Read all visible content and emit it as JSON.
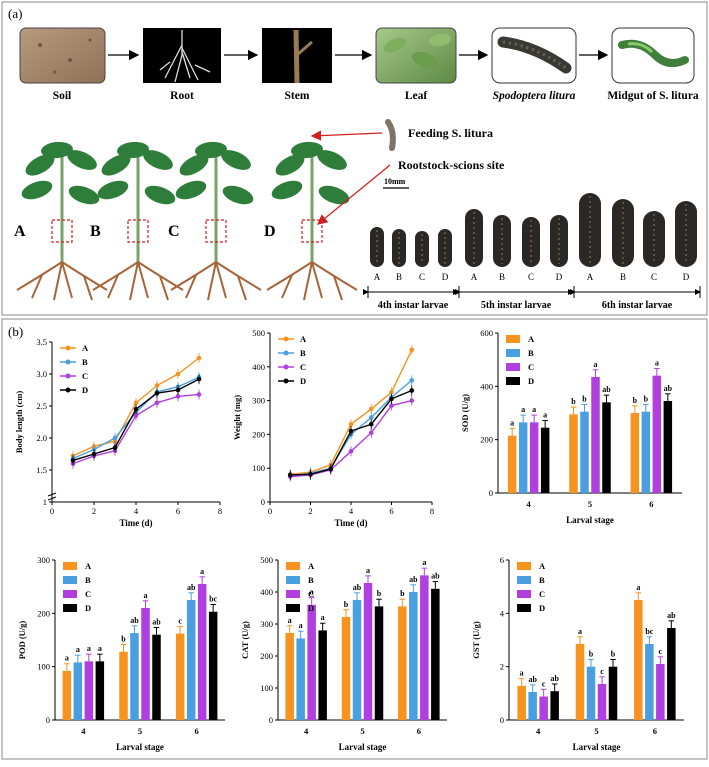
{
  "panel_a": {
    "label": "(a)",
    "flow": [
      "Soil",
      "Root",
      "Stem",
      "Leaf",
      "Spodoptera litura",
      "Midgut of S. litura"
    ],
    "feeding_label": "Feeding S. litura",
    "rootstock_label": "Rootstock-scions site",
    "plant_labels": [
      "A",
      "B",
      "C",
      "D"
    ],
    "scale_bar": "10mm",
    "larva_letters": [
      "A",
      "B",
      "C",
      "D"
    ],
    "instars": [
      "4th instar larvae",
      "5th instar larvae",
      "6th instar larvae"
    ]
  },
  "panel_b": {
    "label": "(b)"
  },
  "colors": {
    "A": "#f7931e",
    "B": "#4a9fe0",
    "C": "#b13fe0",
    "D": "#000000"
  },
  "chart_data": [
    {
      "type": "line",
      "xlabel": "Time (d)",
      "ylabel": "Body length (cm)",
      "xlim": [
        0,
        8
      ],
      "ylim": [
        1.0,
        3.5
      ],
      "xticks": [
        0,
        2,
        4,
        6,
        8
      ],
      "yticks": [
        "1",
        "1.5",
        "2.0",
        "2.5",
        "3.0",
        "3.5"
      ],
      "x": [
        1,
        2,
        3,
        4,
        5,
        6,
        7
      ],
      "series": [
        {
          "name": "A",
          "values": [
            1.72,
            1.87,
            1.95,
            2.55,
            2.82,
            3.0,
            3.25
          ]
        },
        {
          "name": "B",
          "values": [
            1.68,
            1.82,
            2.0,
            2.4,
            2.72,
            2.8,
            2.95
          ]
        },
        {
          "name": "C",
          "values": [
            1.6,
            1.72,
            1.8,
            2.35,
            2.55,
            2.65,
            2.68
          ]
        },
        {
          "name": "D",
          "values": [
            1.65,
            1.75,
            1.85,
            2.45,
            2.7,
            2.75,
            2.92
          ]
        }
      ],
      "legend": "top-left"
    },
    {
      "type": "line",
      "xlabel": "Time (d)",
      "ylabel": "Weight (mg)",
      "xlim": [
        0,
        8
      ],
      "ylim": [
        0,
        500
      ],
      "xticks": [
        0,
        2,
        4,
        6,
        8
      ],
      "yticks": [
        "0",
        "100",
        "200",
        "300",
        "400",
        "500"
      ],
      "x": [
        1,
        2,
        3,
        4,
        5,
        6,
        7
      ],
      "series": [
        {
          "name": "A",
          "values": [
            82,
            88,
            110,
            230,
            275,
            325,
            450
          ]
        },
        {
          "name": "B",
          "values": [
            78,
            85,
            100,
            200,
            250,
            310,
            360
          ]
        },
        {
          "name": "C",
          "values": [
            75,
            80,
            95,
            150,
            205,
            285,
            300
          ]
        },
        {
          "name": "D",
          "values": [
            80,
            82,
            98,
            210,
            230,
            305,
            330
          ]
        }
      ],
      "legend": "top-left"
    },
    {
      "type": "bar",
      "xlabel": "Larval stage",
      "ylabel": "SOD (U/g)",
      "ylim": [
        0,
        600
      ],
      "yticks": [
        "0",
        "200",
        "400",
        "600"
      ],
      "categories": [
        "4",
        "5",
        "6"
      ],
      "series": [
        {
          "name": "A",
          "values": [
            215,
            295,
            300
          ],
          "letters": [
            "a",
            "b",
            "b"
          ]
        },
        {
          "name": "B",
          "values": [
            265,
            305,
            305
          ],
          "letters": [
            "a",
            "b",
            "b"
          ]
        },
        {
          "name": "C",
          "values": [
            265,
            435,
            440
          ],
          "letters": [
            "a",
            "a",
            "a"
          ]
        },
        {
          "name": "D",
          "values": [
            245,
            340,
            345
          ],
          "letters": [
            "a",
            "ab",
            "ab"
          ]
        }
      ],
      "legend": "top-left"
    },
    {
      "type": "bar",
      "xlabel": "Larval stage",
      "ylabel": "POD (U/g)",
      "ylim": [
        0,
        300
      ],
      "yticks": [
        "0",
        "100",
        "200",
        "300"
      ],
      "categories": [
        "4",
        "5",
        "6"
      ],
      "series": [
        {
          "name": "A",
          "values": [
            92,
            128,
            162
          ],
          "letters": [
            "a",
            "b",
            "c"
          ]
        },
        {
          "name": "B",
          "values": [
            108,
            163,
            225
          ],
          "letters": [
            "a",
            "ab",
            "ab"
          ]
        },
        {
          "name": "C",
          "values": [
            110,
            210,
            255
          ],
          "letters": [
            "a",
            "a",
            "a"
          ]
        },
        {
          "name": "D",
          "values": [
            110,
            160,
            203
          ],
          "letters": [
            "a",
            "ab",
            "bc"
          ]
        }
      ],
      "legend": "top-left"
    },
    {
      "type": "bar",
      "xlabel": "Larval stage",
      "ylabel": "CAT (U/g)",
      "ylim": [
        0,
        500
      ],
      "yticks": [
        "0",
        "100",
        "200",
        "300",
        "400",
        "500"
      ],
      "categories": [
        "4",
        "5",
        "6"
      ],
      "series": [
        {
          "name": "A",
          "values": [
            272,
            322,
            355
          ],
          "letters": [
            "a",
            "b",
            "b"
          ]
        },
        {
          "name": "B",
          "values": [
            255,
            375,
            400
          ],
          "letters": [
            "a",
            "ab",
            "ab"
          ]
        },
        {
          "name": "C",
          "values": [
            360,
            428,
            452
          ],
          "letters": [
            "a",
            "a",
            "a"
          ]
        },
        {
          "name": "D",
          "values": [
            280,
            355,
            410
          ],
          "letters": [
            "a",
            "b",
            "ab"
          ]
        }
      ],
      "legend": "top-left"
    },
    {
      "type": "bar",
      "xlabel": "Larval stage",
      "ylabel": "GST (U/g)",
      "ylim": [
        0,
        6
      ],
      "yticks": [
        "0",
        "2",
        "4",
        "6"
      ],
      "categories": [
        "4",
        "5",
        "6"
      ],
      "series": [
        {
          "name": "A",
          "values": [
            1.28,
            2.85,
            4.5
          ],
          "letters": [
            "a",
            "a",
            "a"
          ]
        },
        {
          "name": "B",
          "values": [
            1.05,
            2.0,
            2.85
          ],
          "letters": [
            "ab",
            "b",
            "bc"
          ]
        },
        {
          "name": "C",
          "values": [
            0.88,
            1.35,
            2.1
          ],
          "letters": [
            "c",
            "c",
            "c"
          ]
        },
        {
          "name": "D",
          "values": [
            1.08,
            2.0,
            3.45
          ],
          "letters": [
            "ab",
            "b",
            "ab"
          ]
        }
      ],
      "legend": "top-left"
    }
  ]
}
